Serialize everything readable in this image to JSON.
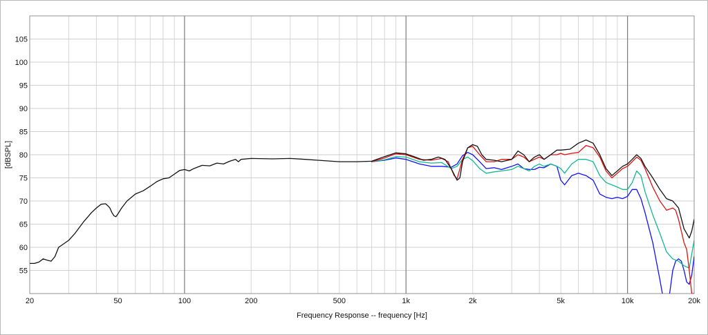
{
  "chart_data": {
    "type": "line",
    "title": "",
    "xlabel": "Frequency Response -- frequency [Hz]",
    "ylabel": "[dBSPL]",
    "x_scale": "log",
    "xlim": [
      20,
      20000
    ],
    "ylim": [
      50,
      110
    ],
    "grid": true,
    "legend": "none",
    "x_tick_values": [
      20,
      50,
      100,
      200,
      500,
      1000,
      2000,
      5000,
      10000,
      20000
    ],
    "x_tick_labels": [
      "20",
      "50",
      "100",
      "200",
      "500",
      "1k",
      "2k",
      "5k",
      "10k",
      "20k"
    ],
    "y_tick_values": [
      55,
      60,
      65,
      70,
      75,
      80,
      85,
      90,
      95,
      100,
      105
    ],
    "y_tick_labels": [
      "55",
      "60",
      "65",
      "70",
      "75",
      "80",
      "85",
      "90",
      "95",
      "100",
      "105"
    ],
    "series": [
      {
        "color": "#1010ff",
        "points": [
          [
            700,
            78.5
          ],
          [
            800,
            78.8
          ],
          [
            900,
            79.3
          ],
          [
            1000,
            79.0
          ],
          [
            1150,
            78.0
          ],
          [
            1300,
            77.5
          ],
          [
            1450,
            77.5
          ],
          [
            1600,
            77.3
          ],
          [
            1700,
            78.0
          ],
          [
            1800,
            79.8
          ],
          [
            1900,
            80.5
          ],
          [
            2000,
            80.0
          ],
          [
            2150,
            78.5
          ],
          [
            2300,
            77.0
          ],
          [
            2500,
            77.2
          ],
          [
            2700,
            76.8
          ],
          [
            3000,
            77.5
          ],
          [
            3200,
            78.0
          ],
          [
            3400,
            77.0
          ],
          [
            3600,
            76.8
          ],
          [
            3800,
            76.8
          ],
          [
            4000,
            77.3
          ],
          [
            4200,
            77.2
          ],
          [
            4500,
            78.0
          ],
          [
            4800,
            77.5
          ],
          [
            5000,
            74.5
          ],
          [
            5200,
            73.5
          ],
          [
            5600,
            75.5
          ],
          [
            6000,
            76.0
          ],
          [
            6500,
            75.5
          ],
          [
            7000,
            74.5
          ],
          [
            7500,
            71.5
          ],
          [
            8000,
            70.8
          ],
          [
            8500,
            70.5
          ],
          [
            9000,
            70.8
          ],
          [
            9500,
            70.5
          ],
          [
            10000,
            71.0
          ],
          [
            10500,
            72.5
          ],
          [
            11000,
            72.5
          ],
          [
            11500,
            70.5
          ],
          [
            12000,
            67.5
          ],
          [
            13000,
            61.0
          ],
          [
            14000,
            53.0
          ],
          [
            15000,
            45.0
          ],
          [
            16000,
            55.0
          ],
          [
            16500,
            57.0
          ],
          [
            17000,
            57.5
          ],
          [
            17500,
            57.0
          ],
          [
            18000,
            55.0
          ],
          [
            18500,
            52.5
          ],
          [
            19000,
            52.0
          ],
          [
            19500,
            54.0
          ],
          [
            20000,
            58.0
          ]
        ]
      },
      {
        "color": "#10b890",
        "points": [
          [
            700,
            78.5
          ],
          [
            800,
            78.9
          ],
          [
            900,
            79.6
          ],
          [
            1000,
            79.5
          ],
          [
            1150,
            78.5
          ],
          [
            1300,
            78.2
          ],
          [
            1450,
            78.3
          ],
          [
            1600,
            77.0
          ],
          [
            1700,
            77.5
          ],
          [
            1800,
            79.0
          ],
          [
            1900,
            79.5
          ],
          [
            2000,
            78.7
          ],
          [
            2150,
            77.0
          ],
          [
            2300,
            76.0
          ],
          [
            2500,
            76.3
          ],
          [
            2700,
            76.5
          ],
          [
            3000,
            76.8
          ],
          [
            3200,
            77.5
          ],
          [
            3400,
            77.0
          ],
          [
            3600,
            76.5
          ],
          [
            3800,
            77.5
          ],
          [
            4000,
            78.0
          ],
          [
            4200,
            77.5
          ],
          [
            4500,
            78.0
          ],
          [
            4800,
            77.5
          ],
          [
            5000,
            77.0
          ],
          [
            5200,
            76.0
          ],
          [
            5600,
            78.0
          ],
          [
            6000,
            79.0
          ],
          [
            6500,
            79.0
          ],
          [
            7000,
            78.5
          ],
          [
            7500,
            75.5
          ],
          [
            8000,
            74.0
          ],
          [
            8500,
            73.5
          ],
          [
            9000,
            73.0
          ],
          [
            9500,
            72.5
          ],
          [
            10000,
            72.5
          ],
          [
            10500,
            74.0
          ],
          [
            11000,
            76.5
          ],
          [
            11500,
            75.5
          ],
          [
            12000,
            72.0
          ],
          [
            13000,
            67.0
          ],
          [
            14000,
            63.0
          ],
          [
            15000,
            59.0
          ],
          [
            16000,
            57.5
          ],
          [
            17000,
            57.0
          ],
          [
            18000,
            56.0
          ],
          [
            19000,
            55.5
          ],
          [
            20000,
            61.5
          ]
        ]
      },
      {
        "color": "#e01010",
        "points": [
          [
            700,
            78.5
          ],
          [
            800,
            79.3
          ],
          [
            900,
            80.2
          ],
          [
            1000,
            80.0
          ],
          [
            1150,
            79.0
          ],
          [
            1300,
            78.8
          ],
          [
            1450,
            79.2
          ],
          [
            1550,
            78.5
          ],
          [
            1650,
            75.5
          ],
          [
            1700,
            74.8
          ],
          [
            1800,
            79.0
          ],
          [
            1900,
            81.5
          ],
          [
            2000,
            81.8
          ],
          [
            2150,
            80.0
          ],
          [
            2300,
            78.5
          ],
          [
            2500,
            78.5
          ],
          [
            2700,
            79.0
          ],
          [
            3000,
            79.0
          ],
          [
            3200,
            80.0
          ],
          [
            3400,
            79.5
          ],
          [
            3600,
            78.5
          ],
          [
            3800,
            79.0
          ],
          [
            4000,
            79.5
          ],
          [
            4200,
            79.0
          ],
          [
            4500,
            80.0
          ],
          [
            4800,
            80.0
          ],
          [
            5000,
            80.3
          ],
          [
            5200,
            80.0
          ],
          [
            5600,
            80.3
          ],
          [
            6000,
            80.5
          ],
          [
            6500,
            82.0
          ],
          [
            7000,
            81.5
          ],
          [
            7500,
            79.5
          ],
          [
            8000,
            76.5
          ],
          [
            8500,
            75.0
          ],
          [
            9000,
            76.0
          ],
          [
            9500,
            77.0
          ],
          [
            10000,
            77.5
          ],
          [
            10500,
            78.5
          ],
          [
            11000,
            79.5
          ],
          [
            11500,
            78.8
          ],
          [
            12000,
            77.0
          ],
          [
            13000,
            73.0
          ],
          [
            14000,
            70.0
          ],
          [
            15000,
            68.0
          ],
          [
            16000,
            68.5
          ],
          [
            16500,
            68.0
          ],
          [
            17000,
            66.0
          ],
          [
            17500,
            63.5
          ],
          [
            18000,
            61.0
          ],
          [
            18500,
            59.5
          ],
          [
            19000,
            55.0
          ],
          [
            19500,
            50.0
          ],
          [
            20000,
            50.0
          ]
        ]
      },
      {
        "color": "#111111",
        "points": [
          [
            20,
            56.5
          ],
          [
            21,
            56.5
          ],
          [
            22,
            56.8
          ],
          [
            23,
            57.5
          ],
          [
            24,
            57.2
          ],
          [
            25,
            57.0
          ],
          [
            26,
            58.0
          ],
          [
            27,
            60.0
          ],
          [
            28,
            60.5
          ],
          [
            30,
            61.5
          ],
          [
            32,
            63.0
          ],
          [
            35,
            65.5
          ],
          [
            38,
            67.5
          ],
          [
            40,
            68.5
          ],
          [
            42,
            69.3
          ],
          [
            44,
            69.4
          ],
          [
            45,
            69.0
          ],
          [
            46,
            68.5
          ],
          [
            47,
            67.5
          ],
          [
            48,
            66.8
          ],
          [
            49,
            66.6
          ],
          [
            50,
            67.2
          ],
          [
            52,
            68.5
          ],
          [
            55,
            70.0
          ],
          [
            60,
            71.5
          ],
          [
            65,
            72.2
          ],
          [
            70,
            73.2
          ],
          [
            75,
            74.2
          ],
          [
            80,
            74.8
          ],
          [
            85,
            75.0
          ],
          [
            90,
            75.8
          ],
          [
            95,
            76.6
          ],
          [
            100,
            76.8
          ],
          [
            105,
            76.5
          ],
          [
            110,
            77.0
          ],
          [
            120,
            77.7
          ],
          [
            130,
            77.6
          ],
          [
            140,
            78.2
          ],
          [
            150,
            78.0
          ],
          [
            160,
            78.6
          ],
          [
            170,
            79.0
          ],
          [
            175,
            78.5
          ],
          [
            180,
            79.0
          ],
          [
            200,
            79.2
          ],
          [
            250,
            79.1
          ],
          [
            300,
            79.2
          ],
          [
            350,
            79.0
          ],
          [
            400,
            78.8
          ],
          [
            500,
            78.5
          ],
          [
            600,
            78.5
          ],
          [
            700,
            78.6
          ],
          [
            800,
            79.6
          ],
          [
            900,
            80.4
          ],
          [
            1000,
            80.2
          ],
          [
            1100,
            79.5
          ],
          [
            1200,
            78.8
          ],
          [
            1300,
            79.0
          ],
          [
            1400,
            79.5
          ],
          [
            1500,
            79.0
          ],
          [
            1600,
            77.0
          ],
          [
            1700,
            74.5
          ],
          [
            1750,
            75.0
          ],
          [
            1800,
            78.5
          ],
          [
            1900,
            81.5
          ],
          [
            2000,
            82.2
          ],
          [
            2100,
            81.8
          ],
          [
            2200,
            80.0
          ],
          [
            2300,
            79.0
          ],
          [
            2500,
            78.8
          ],
          [
            2700,
            78.5
          ],
          [
            3000,
            79.0
          ],
          [
            3200,
            80.8
          ],
          [
            3400,
            80.0
          ],
          [
            3600,
            78.5
          ],
          [
            3800,
            79.5
          ],
          [
            4000,
            80.0
          ],
          [
            4200,
            79.0
          ],
          [
            4500,
            80.0
          ],
          [
            4800,
            81.0
          ],
          [
            5000,
            81.0
          ],
          [
            5500,
            81.2
          ],
          [
            6000,
            82.5
          ],
          [
            6500,
            83.2
          ],
          [
            7000,
            82.5
          ],
          [
            7500,
            80.0
          ],
          [
            8000,
            77.0
          ],
          [
            8500,
            75.5
          ],
          [
            9000,
            76.5
          ],
          [
            9500,
            77.5
          ],
          [
            10000,
            78.0
          ],
          [
            10500,
            79.0
          ],
          [
            11000,
            80.0
          ],
          [
            11500,
            79.2
          ],
          [
            12000,
            77.5
          ],
          [
            13000,
            75.0
          ],
          [
            14000,
            72.5
          ],
          [
            15000,
            70.5
          ],
          [
            16000,
            70.0
          ],
          [
            17000,
            68.5
          ],
          [
            18000,
            64.0
          ],
          [
            19000,
            62.0
          ],
          [
            19500,
            63.5
          ],
          [
            20000,
            66.0
          ]
        ]
      }
    ]
  }
}
